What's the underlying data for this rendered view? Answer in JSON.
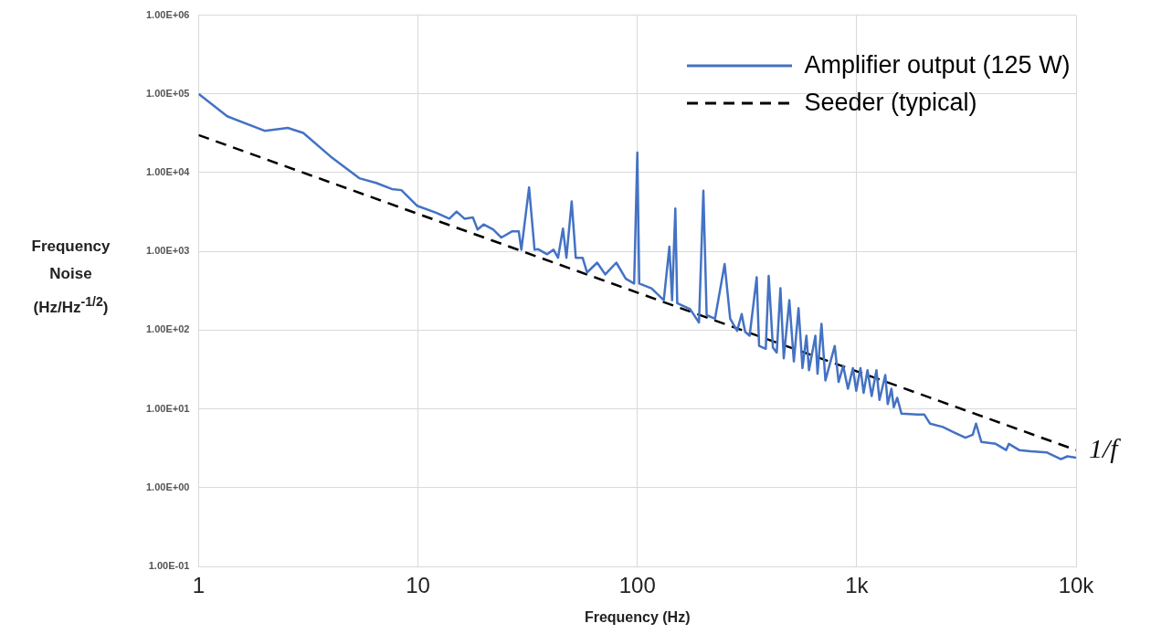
{
  "chart_data": {
    "type": "line",
    "xlabel": "Frequency (Hz)",
    "ylabel": "Frequency Noise (Hz/Hz$^{-1/2}$)",
    "annotations": [
      {
        "text": "1/f",
        "x": 10000,
        "y": 3
      }
    ],
    "series": [
      {
        "name": "Amplifier output (125 W)",
        "color": "#4472c4",
        "line_style": "solid",
        "x": [
          1,
          1.35,
          2,
          2.55,
          3,
          4,
          5.4,
          6.45,
          7.6,
          8.4,
          9.9,
          12.1,
          13.9,
          15,
          16.3,
          17.8,
          18.7,
          19.9,
          22,
          24,
          26.9,
          28.8,
          29.6,
          32.1,
          34,
          35.2,
          38.8,
          41.5,
          43.5,
          45.8,
          47.5,
          50.2,
          52.4,
          56.3,
          59,
          65.6,
          71.4,
          80.2,
          88.6,
          96.7,
          100,
          102,
          116,
          132,
          140,
          144,
          149,
          152,
          174,
          191,
          200,
          207,
          226,
          250,
          265,
          285,
          299,
          310,
          325,
          350,
          359,
          385,
          397,
          415,
          432,
          449,
          465,
          493,
          517,
          543,
          566,
          590,
          606,
          648,
          663,
          691,
          720,
          794,
          827,
          868,
          912,
          961,
          995,
          1040,
          1075,
          1120,
          1170,
          1230,
          1270,
          1350,
          1385,
          1440,
          1475,
          1530,
          1600,
          1890,
          2030,
          2160,
          2470,
          2750,
          3130,
          3380,
          3500,
          3700,
          4300,
          4800,
          4940,
          5500,
          6220,
          7370,
          8530,
          9130,
          10000
        ],
        "values": [
          100000,
          52000,
          34000,
          37000,
          32000,
          16000,
          8500,
          7400,
          6200,
          6000,
          3800,
          3100,
          2600,
          3200,
          2600,
          2700,
          1900,
          2200,
          1900,
          1500,
          1800,
          1800,
          1050,
          6500,
          1050,
          1070,
          920,
          1050,
          830,
          1950,
          830,
          4300,
          830,
          830,
          540,
          720,
          510,
          720,
          450,
          390,
          18000,
          390,
          340,
          240,
          1150,
          240,
          3500,
          220,
          185,
          125,
          5900,
          155,
          140,
          690,
          140,
          98,
          160,
          95,
          85,
          470,
          63,
          58,
          490,
          60,
          52,
          340,
          44,
          240,
          40,
          190,
          33,
          85,
          31,
          85,
          28,
          120,
          23,
          63,
          22,
          35,
          18,
          33,
          17,
          33,
          16,
          31,
          14.6,
          31,
          13,
          27,
          11.5,
          18,
          10.5,
          13.8,
          8.7,
          8.5,
          8.5,
          6.5,
          5.9,
          5.1,
          4.3,
          4.7,
          6.5,
          3.8,
          3.6,
          3.0,
          3.6,
          3.0,
          2.9,
          2.8,
          2.3,
          2.5,
          2.4
        ]
      },
      {
        "name": "Seeder (typical)",
        "color": "#000000",
        "line_style": "dashed",
        "x": [
          1,
          10000
        ],
        "values": [
          30000,
          3
        ]
      }
    ],
    "xlim": [
      1,
      10000
    ],
    "ylim": [
      0.1,
      1000000
    ],
    "xticks": [
      1,
      10,
      100,
      {
        "value": 1000,
        "label": "1k"
      },
      {
        "value": 10000,
        "label": "10k"
      }
    ],
    "yticks": [
      {
        "value": 0.1,
        "label": "1.00E-01"
      },
      {
        "value": 1,
        "label": "1.00E+00"
      },
      {
        "value": 10,
        "label": "1.00E+01"
      },
      {
        "value": 100,
        "label": "1.00E+02"
      },
      {
        "value": 1000,
        "label": "1.00E+03"
      },
      {
        "value": 10000,
        "label": "1.00E+04"
      },
      {
        "value": 100000,
        "label": "1.00E+05"
      },
      {
        "value": 1000000,
        "label": "1.00E+06"
      }
    ],
    "log": "xy",
    "grid": true,
    "legend": "top right",
    "marker": "none"
  }
}
